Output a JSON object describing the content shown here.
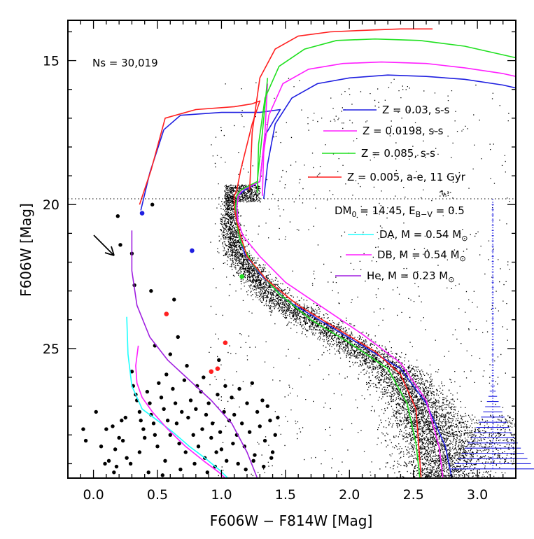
{
  "chart_data": {
    "type": "scatter",
    "xlabel": "F606W − F814W [Mag]",
    "ylabel": "F606W [Mag]",
    "xlim": [
      -0.2,
      3.3
    ],
    "ylim": [
      29.5,
      13.6
    ],
    "y_inverted": true,
    "x_ticks": [
      0.0,
      0.5,
      1.0,
      1.5,
      2.0,
      2.5,
      3.0
    ],
    "x_tick_labels": [
      "0.0",
      "0.5",
      "1.0",
      "1.5",
      "2.0",
      "2.5",
      "3.0"
    ],
    "y_ticks": [
      15,
      20,
      25
    ],
    "y_tick_labels": [
      "15",
      "20",
      "25"
    ],
    "annotation_ns": "Ns = 30,019",
    "turnoff_line_mag": 19.8,
    "legend_isochrones": [
      {
        "name": "Z = 0.03, s-s",
        "color": "#1f1fe0"
      },
      {
        "name": "Z = 0.0198, s-s",
        "color": "#ff1fff"
      },
      {
        "name": "Z = 0.085, s-s",
        "color": "#1fe01f"
      },
      {
        "name": "Z = 0.005, a-e, 11 Gyr",
        "color": "#ff1f1f"
      }
    ],
    "distance_note": {
      "dm_main": "DM",
      "dm_sub": "0",
      "dm_rest": " = 14.45, E",
      "ebv_sub": "B−V",
      "ebv_rest": " = 0.5"
    },
    "legend_wd": [
      {
        "name": "DA, M = 0.54 M",
        "sub": "⊙",
        "color": "#1fffff"
      },
      {
        "name": "DB, M = 0.54 M",
        "sub": "⊙",
        "color": "#ff1fff"
      },
      {
        "name": "He, M = 0.23 M",
        "sub": "⊙",
        "color": "#a01fe0"
      }
    ],
    "series": [
      {
        "name": "Z = 0.03, s-s",
        "color": "#1f1fe0",
        "x": [
          0.37,
          0.44,
          0.55,
          0.68,
          1.0,
          1.3,
          1.46,
          1.34,
          1.3,
          1.18,
          1.13,
          1.12,
          1.12,
          1.14,
          1.18,
          1.3,
          1.5,
          1.8,
          2.1,
          2.4,
          2.6,
          2.75,
          2.8
        ],
        "y": [
          20.2,
          18.9,
          17.4,
          16.9,
          16.8,
          16.8,
          16.7,
          17.6,
          19.2,
          19.5,
          19.7,
          20.1,
          20.6,
          21.1,
          21.7,
          22.4,
          23.3,
          24.1,
          24.9,
          25.7,
          26.9,
          28.4,
          29.5
        ]
      },
      {
        "name": "Z = 0.0198, s-s",
        "color": "#ff1fff",
        "x": [
          1.36,
          1.34,
          1.3,
          1.16,
          1.13,
          1.12,
          1.13,
          1.17,
          1.3,
          1.5,
          1.8,
          2.1,
          2.4,
          2.6,
          2.7,
          2.73
        ],
        "y": [
          15.8,
          17.5,
          19.2,
          19.5,
          19.7,
          20.1,
          20.6,
          21.1,
          21.8,
          22.7,
          23.6,
          24.5,
          25.5,
          26.8,
          28.4,
          29.5
        ]
      },
      {
        "name": "Z = 0.085, s-s",
        "color": "#1fe01f",
        "x": [
          1.36,
          1.32,
          1.28,
          1.15,
          1.12,
          1.11,
          1.12,
          1.15,
          1.25,
          1.45,
          1.7,
          2.0,
          2.3,
          2.45,
          2.52,
          2.55
        ],
        "y": [
          15.6,
          17.5,
          19.2,
          19.5,
          19.7,
          20.1,
          20.7,
          21.3,
          22.1,
          23.1,
          24.0,
          24.8,
          25.7,
          26.9,
          28.3,
          29.5
        ]
      },
      {
        "name": "Z = 0.005, a-e, 11 Gyr",
        "color": "#ff1f1f",
        "x": [
          0.36,
          0.45,
          0.56,
          0.8,
          1.1,
          1.24,
          1.3,
          1.24,
          1.15,
          1.12,
          1.1,
          1.1,
          1.12,
          1.15,
          1.2,
          1.35,
          1.6,
          1.9,
          2.2,
          2.4,
          2.52,
          2.56
        ],
        "y": [
          20.0,
          18.8,
          17.0,
          16.7,
          16.6,
          16.5,
          16.4,
          17.2,
          18.8,
          19.5,
          19.7,
          20.1,
          20.6,
          21.1,
          21.8,
          22.6,
          23.5,
          24.3,
          25.1,
          25.9,
          27.1,
          29.5
        ]
      },
      {
        "name": "upper branch (blue)",
        "color": "#1f1fe0",
        "x": [
          1.33,
          1.36,
          1.42,
          1.55,
          1.75,
          2.0,
          2.3,
          2.6,
          2.9,
          3.2,
          3.3
        ],
        "y": [
          19.8,
          18.6,
          17.2,
          16.3,
          15.8,
          15.6,
          15.5,
          15.55,
          15.65,
          15.85,
          15.95
        ]
      },
      {
        "name": "upper branch (magenta)",
        "color": "#ff1fff",
        "x": [
          1.32,
          1.33,
          1.37,
          1.48,
          1.68,
          1.95,
          2.25,
          2.6,
          2.9,
          3.2,
          3.3
        ],
        "y": [
          19.7,
          18.2,
          16.9,
          15.8,
          15.3,
          15.1,
          15.05,
          15.1,
          15.25,
          15.45,
          15.55
        ]
      },
      {
        "name": "upper branch (green)",
        "color": "#1fe01f",
        "x": [
          1.28,
          1.29,
          1.34,
          1.45,
          1.65,
          1.9,
          2.2,
          2.55,
          2.9,
          3.2,
          3.3
        ],
        "y": [
          19.6,
          17.9,
          16.3,
          15.2,
          14.6,
          14.3,
          14.25,
          14.3,
          14.5,
          14.8,
          14.9
        ]
      },
      {
        "name": "upper branch (red)",
        "color": "#ff1f1f",
        "x": [
          1.22,
          1.24,
          1.3,
          1.42,
          1.6,
          1.85,
          2.1,
          2.4,
          2.65
        ],
        "y": [
          19.5,
          17.5,
          15.6,
          14.6,
          14.15,
          14.0,
          13.95,
          13.9,
          13.9
        ]
      },
      {
        "name": "DA, M = 0.54 M⊙",
        "color": "#1fffff",
        "x": [
          0.26,
          0.27,
          0.3,
          0.38,
          0.5,
          0.62,
          0.75,
          0.87,
          0.98,
          1.05
        ],
        "y": [
          23.9,
          25.2,
          26.3,
          27.1,
          27.5,
          27.9,
          28.4,
          28.8,
          29.2,
          29.5
        ]
      },
      {
        "name": "DB, M = 0.54 M⊙",
        "color": "#ff1fff",
        "x": [
          0.35,
          0.33,
          0.34,
          0.38,
          0.46,
          0.58,
          0.72,
          0.86,
          0.98,
          1.03
        ],
        "y": [
          24.9,
          25.6,
          26.2,
          26.7,
          27.2,
          27.8,
          28.4,
          28.9,
          29.3,
          29.5
        ]
      },
      {
        "name": "He, M = 0.23 M⊙",
        "color": "#a01fe0",
        "x": [
          0.3,
          0.3,
          0.34,
          0.44,
          0.58,
          0.75,
          0.92,
          1.08,
          1.2,
          1.28
        ],
        "y": [
          20.9,
          22.3,
          23.5,
          24.6,
          25.4,
          26.1,
          26.8,
          27.6,
          28.6,
          29.5
        ]
      }
    ],
    "highlight_points": [
      {
        "x": 0.38,
        "y": 20.3,
        "color": "#1f1fe0"
      },
      {
        "x": 0.77,
        "y": 21.6,
        "color": "#1f1fe0"
      },
      {
        "x": 1.16,
        "y": 22.5,
        "color": "#1fe01f"
      },
      {
        "x": 0.57,
        "y": 23.8,
        "color": "#ff1f1f"
      },
      {
        "x": 1.03,
        "y": 24.8,
        "color": "#ff1f1f"
      },
      {
        "x": 0.92,
        "y": 25.8,
        "color": "#ff1f1f"
      },
      {
        "x": 0.97,
        "y": 25.7,
        "color": "#ff1f1f"
      }
    ],
    "field_points": [
      [
        0.19,
        20.4
      ],
      [
        0.46,
        20.0
      ],
      [
        0.21,
        21.4
      ],
      [
        0.3,
        21.7
      ],
      [
        0.32,
        22.8
      ],
      [
        0.45,
        23.0
      ],
      [
        0.63,
        23.3
      ],
      [
        -0.08,
        27.8
      ],
      [
        -0.06,
        28.2
      ],
      [
        0.02,
        27.2
      ],
      [
        0.06,
        28.4
      ],
      [
        0.1,
        27.8
      ],
      [
        0.12,
        28.9
      ],
      [
        0.15,
        27.7
      ],
      [
        0.17,
        28.5
      ],
      [
        0.18,
        29.1
      ],
      [
        0.2,
        28.1
      ],
      [
        0.22,
        27.5
      ],
      [
        0.25,
        27.4
      ],
      [
        0.26,
        28.8
      ],
      [
        0.3,
        25.8
      ],
      [
        0.31,
        26.3
      ],
      [
        0.33,
        26.6
      ],
      [
        0.34,
        26.8
      ],
      [
        0.36,
        27.2
      ],
      [
        0.37,
        27.5
      ],
      [
        0.39,
        27.8
      ],
      [
        0.4,
        28.1
      ],
      [
        0.42,
        26.5
      ],
      [
        0.44,
        26.9
      ],
      [
        0.45,
        27.3
      ],
      [
        0.47,
        27.6
      ],
      [
        0.48,
        28.0
      ],
      [
        0.5,
        28.4
      ],
      [
        0.51,
        26.2
      ],
      [
        0.53,
        26.7
      ],
      [
        0.55,
        27.1
      ],
      [
        0.57,
        25.9
      ],
      [
        0.58,
        27.5
      ],
      [
        0.6,
        28.0
      ],
      [
        0.62,
        26.4
      ],
      [
        0.64,
        26.9
      ],
      [
        0.65,
        27.6
      ],
      [
        0.67,
        28.3
      ],
      [
        0.69,
        27.2
      ],
      [
        0.71,
        26.1
      ],
      [
        0.72,
        28.6
      ],
      [
        0.74,
        27.4
      ],
      [
        0.76,
        26.8
      ],
      [
        0.78,
        28.0
      ],
      [
        0.8,
        27.1
      ],
      [
        0.82,
        28.4
      ],
      [
        0.84,
        26.5
      ],
      [
        0.85,
        27.8
      ],
      [
        0.87,
        28.8
      ],
      [
        0.88,
        27.3
      ],
      [
        0.9,
        26.9
      ],
      [
        0.92,
        28.1
      ],
      [
        0.93,
        27.6
      ],
      [
        0.95,
        29.1
      ],
      [
        0.97,
        26.6
      ],
      [
        0.99,
        27.9
      ],
      [
        1.0,
        28.5
      ],
      [
        1.02,
        27.2
      ],
      [
        1.03,
        26.3
      ],
      [
        1.04,
        28.9
      ],
      [
        0.96,
        28.6
      ],
      [
        0.89,
        29.3
      ],
      [
        0.79,
        29.0
      ],
      [
        0.68,
        29.2
      ],
      [
        0.56,
        28.9
      ],
      [
        0.43,
        29.3
      ],
      [
        0.29,
        29.0
      ],
      [
        0.16,
        29.3
      ],
      [
        1.08,
        26.7
      ],
      [
        1.1,
        27.3
      ],
      [
        1.12,
        28.0
      ],
      [
        1.14,
        26.4
      ],
      [
        1.16,
        27.6
      ],
      [
        1.18,
        28.4
      ],
      [
        1.2,
        26.9
      ],
      [
        1.22,
        27.9
      ],
      [
        1.24,
        26.2
      ],
      [
        1.26,
        28.7
      ],
      [
        1.28,
        27.2
      ],
      [
        1.3,
        27.7
      ],
      [
        1.32,
        26.8
      ],
      [
        1.34,
        28.2
      ],
      [
        1.36,
        27.0
      ],
      [
        1.38,
        27.5
      ],
      [
        1.4,
        28.6
      ],
      [
        1.42,
        28.0
      ],
      [
        1.44,
        27.4
      ],
      [
        1.06,
        27.5
      ],
      [
        1.09,
        28.3
      ],
      [
        1.13,
        29.0
      ],
      [
        1.19,
        29.2
      ],
      [
        1.25,
        28.9
      ],
      [
        1.33,
        29.1
      ],
      [
        1.39,
        28.8
      ],
      [
        0.98,
        25.4
      ],
      [
        0.86,
        26.0
      ],
      [
        0.73,
        25.6
      ],
      [
        0.6,
        25.2
      ],
      [
        0.48,
        24.9
      ],
      [
        0.66,
        24.6
      ],
      [
        0.81,
        26.3
      ],
      [
        0.54,
        29.4
      ],
      [
        0.36,
        28.6
      ],
      [
        0.23,
        28.2
      ],
      [
        0.09,
        29.0
      ]
    ]
  }
}
